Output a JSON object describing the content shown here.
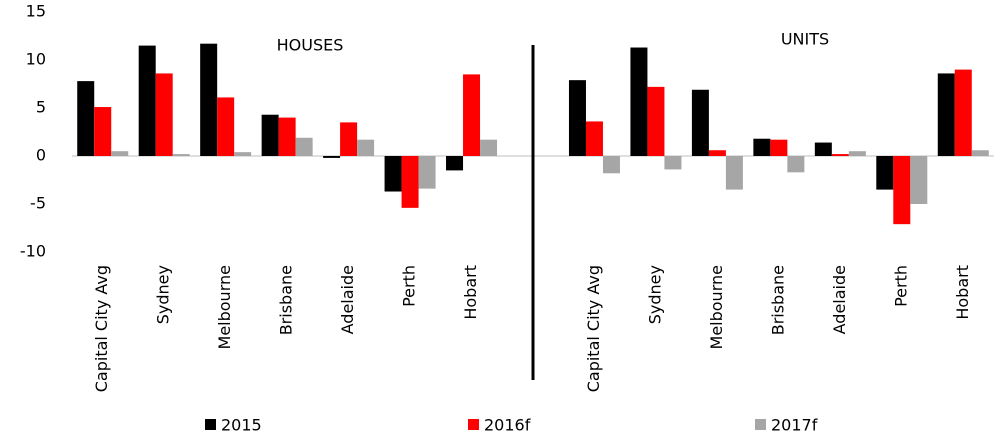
{
  "chart_data": {
    "type": "bar",
    "categories": [
      "Capital City Avg",
      "Sydney",
      "Melbourne",
      "Brisbane",
      "Adelaide",
      "Perth",
      "Hobart",
      null,
      "Capital City Avg",
      "Sydney",
      "Melbourne",
      "Brisbane",
      "Adelaide",
      "Perth",
      "Hobart"
    ],
    "series": [
      {
        "name": "2015",
        "color": "#000000",
        "values": [
          7.8,
          11.5,
          11.7,
          4.3,
          -0.2,
          -3.7,
          -1.5,
          null,
          7.9,
          11.3,
          6.9,
          1.8,
          1.4,
          -3.5,
          8.6
        ]
      },
      {
        "name": "2016f",
        "color": "#ff0000",
        "values": [
          5.1,
          8.6,
          6.1,
          4.0,
          3.5,
          -5.4,
          8.5,
          null,
          3.6,
          7.2,
          0.6,
          1.7,
          0.2,
          -7.1,
          9.0
        ]
      },
      {
        "name": "2017f",
        "color": "#a6a6a6",
        "values": [
          0.5,
          0.2,
          0.4,
          1.9,
          1.7,
          -3.4,
          1.7,
          null,
          -1.8,
          -1.4,
          -3.5,
          -1.7,
          0.5,
          -5.0,
          0.6
        ]
      }
    ],
    "annotations": [
      "HOUSES",
      "UNITS"
    ],
    "ylim": [
      -10,
      15
    ],
    "yticks": [
      -10,
      -5,
      0,
      5,
      10,
      15
    ],
    "grid": false,
    "legend": "bottom"
  }
}
